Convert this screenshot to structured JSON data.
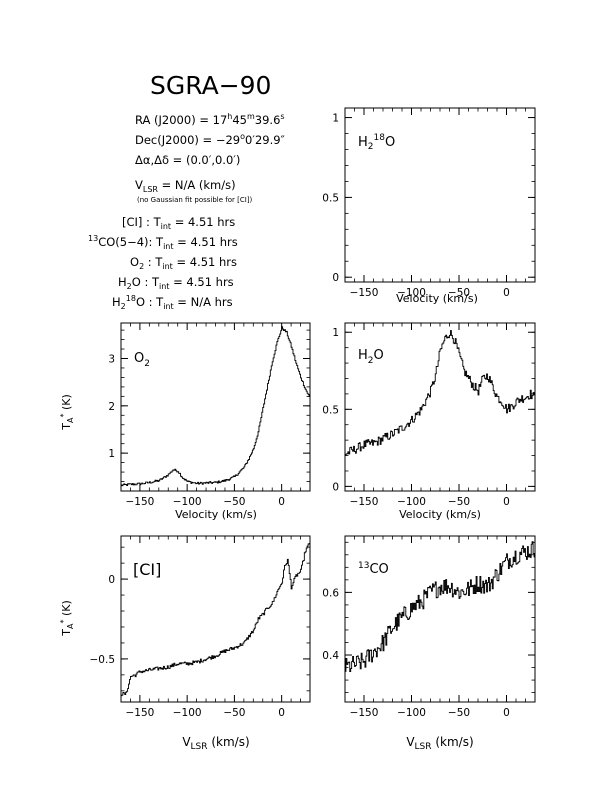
{
  "page": {
    "title": "SGRA−90",
    "info": {
      "ra": "RA (J2000) = 17h45m39.6s",
      "dec": "Dec(J2000) = −29°0′29.9″",
      "offset": "Δα,Δδ = (0.0′,0.0′)",
      "vlsr": "VLSR = N/A (km/s)",
      "note": "(no Gaussian fit possible for [CI])",
      "integration_times": [
        {
          "line": "[CI]",
          "value": "Tint = 4.51 hrs"
        },
        {
          "line": "13CO(5−4)",
          "value": "Tint = 4.51 hrs"
        },
        {
          "line": "O2",
          "value": "Tint = 4.51 hrs"
        },
        {
          "line": "H2O",
          "value": "Tint = 4.51 hrs"
        },
        {
          "line": "H2 18O",
          "value": "Tint = N/A hrs"
        }
      ]
    }
  },
  "chart_data": [
    {
      "id": "h218o",
      "type": "line",
      "label": "H2 18O",
      "xlabel": "Velocity (km/s)",
      "ylabel": "",
      "xlim": [
        -170,
        30
      ],
      "ylim": [
        -0.03,
        1.06
      ],
      "xticks": [
        -150,
        -100,
        -50,
        0
      ],
      "yticks": [
        0,
        0.5,
        1
      ],
      "series": []
    },
    {
      "id": "o2",
      "type": "line",
      "label": "O2",
      "xlabel": "Velocity (km/s)",
      "ylabel": "TA* (K)",
      "xlim": [
        -170,
        30
      ],
      "ylim": [
        0.2,
        3.75
      ],
      "xticks": [
        -150,
        -100,
        -50,
        0
      ],
      "yticks": [
        1,
        2,
        3
      ],
      "series": [
        {
          "x": [
            -170,
            -160,
            -150,
            -140,
            -130,
            -125,
            -120,
            -115,
            -110,
            -105,
            -100,
            -90,
            -80,
            -70,
            -60,
            -50,
            -40,
            -35,
            -30,
            -25,
            -20,
            -15,
            -10,
            -5,
            0,
            5,
            10,
            15,
            20,
            25,
            30
          ],
          "y": [
            0.32,
            0.34,
            0.35,
            0.38,
            0.42,
            0.48,
            0.55,
            0.65,
            0.62,
            0.48,
            0.4,
            0.36,
            0.37,
            0.38,
            0.42,
            0.5,
            0.7,
            0.88,
            1.1,
            1.45,
            1.95,
            2.45,
            2.95,
            3.35,
            3.65,
            3.55,
            3.25,
            2.9,
            2.6,
            2.35,
            2.15
          ],
          "noise": 0.025
        }
      ]
    },
    {
      "id": "h2o",
      "type": "line",
      "label": "H2O",
      "xlabel": "Velocity (km/s)",
      "ylabel": "",
      "xlim": [
        -170,
        30
      ],
      "ylim": [
        -0.03,
        1.06
      ],
      "xticks": [
        -150,
        -100,
        -50,
        0
      ],
      "yticks": [
        0,
        0.5,
        1
      ],
      "series": [
        {
          "x": [
            -170,
            -160,
            -150,
            -140,
            -130,
            -120,
            -110,
            -100,
            -90,
            -80,
            -75,
            -70,
            -65,
            -60,
            -55,
            -50,
            -45,
            -40,
            -35,
            -30,
            -25,
            -20,
            -15,
            -10,
            -5,
            0,
            5,
            10,
            15,
            20,
            25,
            30
          ],
          "y": [
            0.21,
            0.24,
            0.27,
            0.28,
            0.31,
            0.34,
            0.38,
            0.43,
            0.5,
            0.62,
            0.72,
            0.88,
            0.96,
            1.0,
            0.95,
            0.85,
            0.75,
            0.7,
            0.65,
            0.62,
            0.7,
            0.72,
            0.65,
            0.58,
            0.55,
            0.5,
            0.52,
            0.55,
            0.57,
            0.58,
            0.6,
            0.57
          ],
          "noise": 0.03
        }
      ]
    },
    {
      "id": "ci",
      "type": "line",
      "label": "[CI]",
      "xlabel": "VLSR (km/s)",
      "ylabel": "TA* (K)",
      "xlim": [
        -170,
        30
      ],
      "ylim": [
        -0.77,
        0.27
      ],
      "xticks": [
        -150,
        -100,
        -50,
        0
      ],
      "yticks": [
        -0.5,
        0
      ],
      "series": [
        {
          "x": [
            -170,
            -165,
            -160,
            -155,
            -150,
            -140,
            -130,
            -120,
            -110,
            -100,
            -90,
            -80,
            -70,
            -60,
            -50,
            -40,
            -30,
            -25,
            -20,
            -15,
            -10,
            -5,
            0,
            3,
            6,
            10,
            15,
            20,
            25,
            30
          ],
          "y": [
            -0.72,
            -0.72,
            -0.61,
            -0.6,
            -0.58,
            -0.57,
            -0.56,
            -0.55,
            -0.53,
            -0.53,
            -0.52,
            -0.5,
            -0.48,
            -0.45,
            -0.43,
            -0.4,
            -0.32,
            -0.25,
            -0.22,
            -0.18,
            -0.15,
            -0.08,
            -0.02,
            0.08,
            0.12,
            -0.05,
            0.02,
            0.05,
            0.18,
            0.23
          ],
          "noise": 0.012
        }
      ]
    },
    {
      "id": "13co",
      "type": "line",
      "label": "13CO",
      "xlabel": "VLSR (km/s)",
      "ylabel": "",
      "xlim": [
        -170,
        30
      ],
      "ylim": [
        0.25,
        0.78
      ],
      "xticks": [
        -150,
        -100,
        -50,
        0
      ],
      "yticks": [
        0.4,
        0.6
      ],
      "series": [
        {
          "x": [
            -170,
            -160,
            -150,
            -140,
            -130,
            -120,
            -110,
            -100,
            -90,
            -80,
            -70,
            -60,
            -50,
            -40,
            -30,
            -20,
            -10,
            0,
            10,
            20,
            30
          ],
          "y": [
            0.36,
            0.37,
            0.38,
            0.41,
            0.44,
            0.49,
            0.52,
            0.55,
            0.57,
            0.6,
            0.62,
            0.62,
            0.6,
            0.61,
            0.63,
            0.62,
            0.66,
            0.7,
            0.72,
            0.73,
            0.74
          ],
          "noise": 0.03
        }
      ]
    }
  ]
}
